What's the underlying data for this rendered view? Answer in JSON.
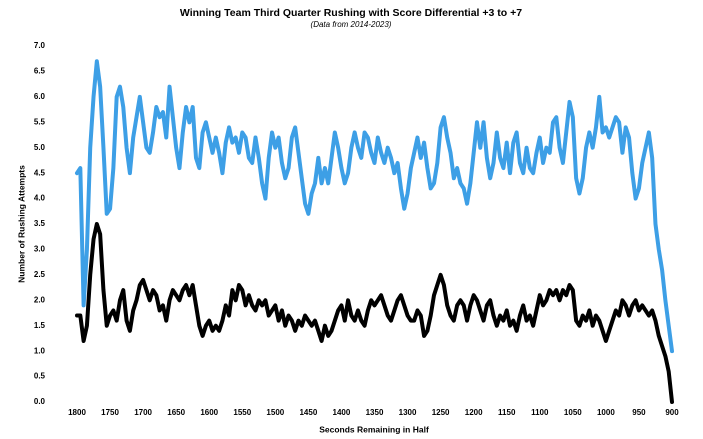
{
  "chart_data": {
    "type": "line",
    "title": "Winning Team Third Quarter Rushing with Score Differential +3 to +7",
    "subtitle": "(Data from 2014-2023)",
    "x_label": "Seconds Remaining in Half",
    "y_label": "Number of Rushing Attempts",
    "xlim": [
      1800,
      900
    ],
    "ylim": [
      0,
      7
    ],
    "xticks": [
      1800,
      1750,
      1700,
      1650,
      1600,
      1550,
      1500,
      1450,
      1400,
      1350,
      1300,
      1250,
      1200,
      1150,
      1100,
      1050,
      1000,
      950,
      900
    ],
    "yticks": [
      {
        "value": 0,
        "label": "0.0"
      },
      0.5,
      {
        "value": 1,
        "label": "1.0"
      },
      1.5,
      {
        "value": 2,
        "label": "2.0"
      },
      2.5,
      {
        "value": 3,
        "label": "3.0"
      },
      3.5,
      {
        "value": 4,
        "label": "4.0"
      },
      4.5,
      {
        "value": 5,
        "label": "5.0"
      },
      5.5,
      {
        "value": 6,
        "label": "6.0"
      },
      6.5,
      {
        "value": 7,
        "label": "7.0"
      }
    ],
    "grid": false,
    "x": [
      1800,
      1795,
      1790,
      1785,
      1780,
      1775,
      1770,
      1765,
      1760,
      1755,
      1750,
      1745,
      1740,
      1735,
      1730,
      1725,
      1720,
      1715,
      1710,
      1705,
      1700,
      1695,
      1690,
      1685,
      1680,
      1675,
      1670,
      1665,
      1660,
      1655,
      1650,
      1645,
      1640,
      1635,
      1630,
      1625,
      1620,
      1615,
      1610,
      1605,
      1600,
      1595,
      1590,
      1585,
      1580,
      1575,
      1570,
      1565,
      1560,
      1555,
      1550,
      1545,
      1540,
      1535,
      1530,
      1525,
      1520,
      1515,
      1510,
      1505,
      1500,
      1495,
      1490,
      1485,
      1480,
      1475,
      1470,
      1465,
      1460,
      1455,
      1450,
      1445,
      1440,
      1435,
      1430,
      1425,
      1420,
      1415,
      1410,
      1405,
      1400,
      1395,
      1390,
      1385,
      1380,
      1375,
      1370,
      1365,
      1360,
      1355,
      1350,
      1345,
      1340,
      1335,
      1330,
      1325,
      1320,
      1315,
      1310,
      1305,
      1300,
      1295,
      1290,
      1285,
      1280,
      1275,
      1270,
      1265,
      1260,
      1255,
      1250,
      1245,
      1240,
      1235,
      1230,
      1225,
      1220,
      1215,
      1210,
      1205,
      1200,
      1195,
      1190,
      1185,
      1180,
      1175,
      1170,
      1165,
      1160,
      1155,
      1150,
      1145,
      1140,
      1135,
      1130,
      1125,
      1120,
      1115,
      1110,
      1105,
      1100,
      1095,
      1090,
      1085,
      1080,
      1075,
      1070,
      1065,
      1060,
      1055,
      1050,
      1045,
      1040,
      1035,
      1030,
      1025,
      1020,
      1015,
      1010,
      1005,
      1000,
      995,
      990,
      985,
      980,
      975,
      970,
      965,
      960,
      955,
      950,
      945,
      940,
      935,
      930,
      925,
      920,
      915,
      910,
      905,
      900
    ],
    "series": [
      {
        "color": "#3d9fe6",
        "values": [
          4.5,
          4.6,
          1.9,
          3.0,
          5.0,
          6.0,
          6.7,
          6.2,
          5.0,
          3.7,
          3.8,
          4.6,
          6.0,
          6.2,
          5.8,
          5.0,
          4.5,
          5.2,
          5.6,
          6.0,
          5.5,
          5.0,
          4.9,
          5.3,
          5.8,
          5.6,
          5.7,
          5.2,
          6.2,
          5.6,
          5.0,
          4.6,
          5.3,
          5.8,
          5.5,
          5.8,
          4.8,
          4.6,
          5.3,
          5.5,
          5.2,
          4.9,
          5.2,
          4.9,
          4.5,
          5.1,
          5.4,
          5.1,
          5.2,
          4.9,
          5.3,
          5.2,
          4.8,
          4.7,
          5.2,
          4.8,
          4.3,
          4.0,
          4.8,
          5.3,
          5.0,
          5.2,
          4.7,
          4.4,
          4.6,
          5.2,
          5.4,
          4.9,
          4.4,
          3.9,
          3.7,
          4.1,
          4.3,
          4.8,
          4.3,
          4.6,
          4.3,
          4.8,
          5.3,
          5.0,
          4.6,
          4.3,
          4.5,
          5.0,
          5.3,
          5.0,
          4.8,
          5.3,
          5.2,
          4.9,
          4.7,
          5.2,
          4.9,
          4.7,
          5.0,
          4.8,
          4.5,
          4.7,
          4.2,
          3.8,
          4.1,
          4.6,
          4.9,
          5.2,
          4.8,
          5.1,
          4.6,
          4.2,
          4.3,
          4.7,
          5.4,
          5.6,
          5.2,
          4.9,
          4.4,
          4.6,
          4.3,
          4.2,
          3.9,
          4.3,
          4.9,
          5.5,
          5.0,
          5.5,
          4.8,
          4.4,
          4.7,
          5.3,
          4.8,
          4.6,
          5.1,
          4.5,
          5.1,
          5.3,
          4.7,
          4.5,
          5.0,
          4.6,
          4.5,
          4.9,
          5.2,
          4.7,
          5.0,
          4.9,
          5.5,
          5.6,
          5.0,
          4.7,
          5.3,
          5.9,
          5.6,
          4.4,
          4.1,
          4.4,
          5.0,
          5.3,
          5.0,
          5.4,
          6.0,
          5.3,
          5.4,
          5.2,
          5.4,
          5.6,
          5.5,
          4.9,
          5.4,
          5.2,
          4.5,
          4.0,
          4.2,
          4.7,
          5.0,
          5.3,
          4.8,
          3.5,
          3.0,
          2.6,
          2.0,
          1.5,
          1.0
        ]
      },
      {
        "color": "#000000",
        "values": [
          1.7,
          1.7,
          1.2,
          1.5,
          2.5,
          3.2,
          3.5,
          3.3,
          2.2,
          1.5,
          1.7,
          1.8,
          1.6,
          2.0,
          2.2,
          1.6,
          1.4,
          1.8,
          2.0,
          2.3,
          2.4,
          2.2,
          2.0,
          2.2,
          2.1,
          1.8,
          1.9,
          1.6,
          2.0,
          2.2,
          2.1,
          2.0,
          2.2,
          2.3,
          2.1,
          2.3,
          1.9,
          1.5,
          1.3,
          1.5,
          1.6,
          1.4,
          1.5,
          1.4,
          1.6,
          1.9,
          1.7,
          2.2,
          2.0,
          2.3,
          2.2,
          1.9,
          2.1,
          1.9,
          1.8,
          2.0,
          1.9,
          2.0,
          1.7,
          1.8,
          1.9,
          1.6,
          1.8,
          1.5,
          1.7,
          1.6,
          1.4,
          1.6,
          1.5,
          1.7,
          1.6,
          1.5,
          1.6,
          1.4,
          1.2,
          1.5,
          1.3,
          1.4,
          1.6,
          1.8,
          1.9,
          1.6,
          2.0,
          1.7,
          1.6,
          1.8,
          1.6,
          1.5,
          1.8,
          2.0,
          1.9,
          2.0,
          2.1,
          1.9,
          1.7,
          1.6,
          1.8,
          2.0,
          2.1,
          1.9,
          1.7,
          1.6,
          1.6,
          1.8,
          1.7,
          1.3,
          1.4,
          1.7,
          2.1,
          2.3,
          2.5,
          2.3,
          1.9,
          1.7,
          1.6,
          1.9,
          2.0,
          1.9,
          1.6,
          1.9,
          2.1,
          2.0,
          1.8,
          1.6,
          1.9,
          2.0,
          1.7,
          1.5,
          1.7,
          1.6,
          1.8,
          1.5,
          1.6,
          1.4,
          1.7,
          1.9,
          1.6,
          1.7,
          1.5,
          1.8,
          2.1,
          1.9,
          2.0,
          2.2,
          2.1,
          2.2,
          2.0,
          2.2,
          2.1,
          2.3,
          2.2,
          1.6,
          1.5,
          1.7,
          1.6,
          1.8,
          1.5,
          1.7,
          1.6,
          1.4,
          1.2,
          1.4,
          1.6,
          1.8,
          1.7,
          2.0,
          1.9,
          1.7,
          1.9,
          2.0,
          1.8,
          1.9,
          1.8,
          1.7,
          1.8,
          1.6,
          1.3,
          1.1,
          0.9,
          0.6,
          0.0
        ]
      }
    ]
  }
}
